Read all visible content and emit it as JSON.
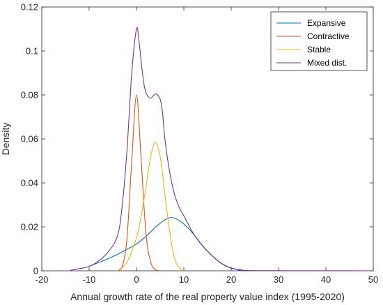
{
  "chart_data": {
    "type": "line",
    "xlabel": "Annual growth rate of the real property value index (1995-2020)",
    "ylabel": "Density",
    "xlim": [
      -20,
      50
    ],
    "ylim": [
      0,
      0.12
    ],
    "x_ticks": [
      -20,
      -10,
      0,
      10,
      20,
      30,
      40,
      50
    ],
    "x_tick_labels": [
      "-20",
      "-10",
      "0",
      "10",
      "20",
      "30",
      "40",
      "50"
    ],
    "y_ticks": [
      0,
      0.02,
      0.04,
      0.06,
      0.08,
      0.1,
      0.12
    ],
    "y_tick_labels": [
      "0",
      "0.02",
      "0.04",
      "0.06",
      "0.08",
      "0.1",
      "0.12"
    ],
    "grid": false,
    "legend_position": "top-right",
    "series": [
      {
        "name": "Expansive",
        "color": "#0072BD",
        "points": [
          [
            -10,
            0.002
          ],
          [
            -6,
            0.0055
          ],
          [
            -4,
            0.0075
          ],
          [
            -2,
            0.0098
          ],
          [
            0,
            0.0122
          ],
          [
            2,
            0.0157
          ],
          [
            4,
            0.0198
          ],
          [
            6,
            0.0232
          ],
          [
            7,
            0.0241
          ],
          [
            8,
            0.024
          ],
          [
            10,
            0.0213
          ],
          [
            12,
            0.0168
          ],
          [
            14,
            0.0113
          ],
          [
            16,
            0.0068
          ],
          [
            18,
            0.0032
          ],
          [
            20,
            0.0012
          ],
          [
            22,
            0.0004
          ],
          [
            24,
            0.0001
          ]
        ]
      },
      {
        "name": "Contractive",
        "color": "#D95319",
        "points": [
          [
            -4,
            0
          ],
          [
            -3,
            0.002
          ],
          [
            -2,
            0.015
          ],
          [
            -1,
            0.05
          ],
          [
            0,
            0.08
          ],
          [
            1,
            0.05
          ],
          [
            2,
            0.017
          ],
          [
            3,
            0.004
          ],
          [
            4,
            0.0005
          ],
          [
            5,
            0
          ]
        ]
      },
      {
        "name": "Stable",
        "color": "#EDB120",
        "points": [
          [
            -4,
            0
          ],
          [
            -2,
            0.004
          ],
          [
            0,
            0.015
          ],
          [
            1,
            0.025
          ],
          [
            2,
            0.038
          ],
          [
            3,
            0.052
          ],
          [
            4,
            0.0585
          ],
          [
            5,
            0.052
          ],
          [
            6,
            0.035
          ],
          [
            7,
            0.018
          ],
          [
            8,
            0.006
          ],
          [
            9,
            0.0015
          ],
          [
            10,
            0
          ]
        ]
      },
      {
        "name": "Mixed dist.",
        "color": "#7E2F8E",
        "points": [
          [
            -14,
            0.0002
          ],
          [
            -12,
            0.001
          ],
          [
            -10,
            0.002
          ],
          [
            -8,
            0.0045
          ],
          [
            -6,
            0.0085
          ],
          [
            -4,
            0.016
          ],
          [
            -3,
            0.03
          ],
          [
            -2,
            0.055
          ],
          [
            -1,
            0.09
          ],
          [
            0,
            0.11
          ],
          [
            0.5,
            0.105
          ],
          [
            1,
            0.095
          ],
          [
            1.5,
            0.086
          ],
          [
            2,
            0.081
          ],
          [
            3,
            0.0785
          ],
          [
            4,
            0.0805
          ],
          [
            5,
            0.078
          ],
          [
            5.5,
            0.072
          ],
          [
            6,
            0.06
          ],
          [
            7,
            0.045
          ],
          [
            8,
            0.035
          ],
          [
            9,
            0.029
          ],
          [
            10,
            0.025
          ],
          [
            12,
            0.017
          ],
          [
            14,
            0.0112
          ],
          [
            16,
            0.0068
          ],
          [
            18,
            0.0033
          ],
          [
            20,
            0.0013
          ],
          [
            22,
            0.0005
          ],
          [
            24,
            0.0001
          ],
          [
            50,
            0
          ]
        ]
      }
    ]
  }
}
